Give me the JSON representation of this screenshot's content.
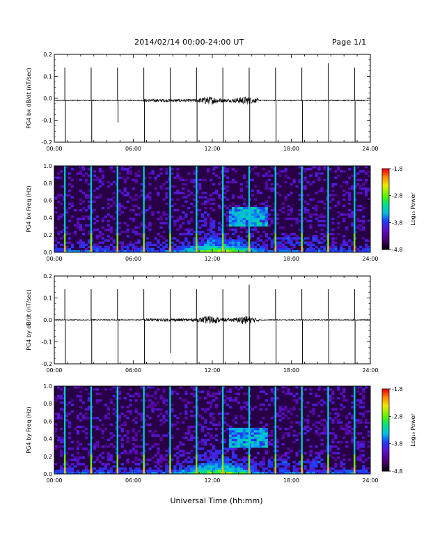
{
  "header": {
    "title": "2014/02/14  00:00-24:00 UT",
    "page": "Page 1/1"
  },
  "xlabel": "Universal Time (hh:mm)",
  "colorbar": {
    "label": "Log₁₀ Power",
    "ticks": [
      "-1.8",
      "-2.8",
      "-3.8",
      "-4.8"
    ],
    "range": [
      -4.8,
      -1.8
    ]
  },
  "chart_data": [
    {
      "type": "line",
      "ylabel": "PG4 bx dB/dt (nT/sec)",
      "xlim": [
        "00:00",
        "24:00"
      ],
      "ylim": [
        -0.2,
        0.2
      ],
      "xticks": [
        "00:00",
        "06:00",
        "12:00",
        "18:00",
        "24:00"
      ],
      "yticks": [
        "0.2",
        "0.1",
        "0.0",
        "-0.1",
        "-0.2"
      ],
      "baseline": -0.01,
      "spike_times_hours": [
        0.8,
        2.8,
        4.8,
        6.8,
        8.8,
        10.8,
        12.8,
        14.8,
        16.8,
        18.8,
        20.8,
        22.8
      ],
      "spike_max": [
        0.14,
        0.14,
        0.14,
        0.14,
        0.14,
        0.14,
        0.14,
        0.14,
        0.14,
        0.14,
        0.16,
        0.14
      ],
      "spike_min": [
        -0.2,
        -0.2,
        -0.11,
        -0.2,
        -0.2,
        -0.2,
        -0.2,
        -0.2,
        -0.2,
        -0.2,
        -0.2,
        -0.2
      ],
      "noise_period_hours": [
        6.8,
        15.5
      ],
      "noise_peak_hours": [
        11.8,
        14.5
      ]
    },
    {
      "type": "heatmap",
      "ylabel": "PG4 bx Freq (Hz)",
      "xlim": [
        "00:00",
        "24:00"
      ],
      "ylim": [
        0.0,
        1.0
      ],
      "xticks": [
        "00:00",
        "06:00",
        "12:00",
        "18:00",
        "24:00"
      ],
      "yticks": [
        "1.0",
        "0.8",
        "0.6",
        "0.4",
        "0.2",
        "0.0"
      ],
      "zlim": [
        -4.8,
        -1.8
      ],
      "spike_times_hours": [
        0.8,
        2.8,
        4.8,
        6.8,
        8.8,
        10.8,
        12.8,
        14.8,
        16.8,
        18.8,
        20.8,
        22.8
      ],
      "enhanced_band_hours": [
        13.2,
        16.2
      ],
      "enhanced_band_freq_hz": [
        0.35,
        0.5
      ]
    },
    {
      "type": "line",
      "ylabel": "PG4 by dB/dt (nT/sec)",
      "xlim": [
        "00:00",
        "24:00"
      ],
      "ylim": [
        -0.2,
        0.2
      ],
      "xticks": [
        "00:00",
        "06:00",
        "12:00",
        "18:00",
        "24:00"
      ],
      "yticks": [
        "0.2",
        "0.1",
        "0.0",
        "-0.1",
        "-0.2"
      ],
      "baseline": 0.0,
      "spike_times_hours": [
        0.8,
        2.8,
        4.8,
        6.8,
        8.8,
        10.8,
        12.8,
        14.8,
        16.8,
        18.8,
        20.8,
        22.8
      ],
      "spike_max": [
        0.14,
        0.14,
        0.14,
        0.14,
        0.14,
        0.14,
        0.14,
        0.16,
        0.14,
        0.14,
        0.14,
        0.14
      ],
      "spike_min": [
        -0.2,
        -0.2,
        -0.2,
        -0.2,
        -0.15,
        -0.2,
        -0.2,
        -0.2,
        -0.2,
        -0.2,
        -0.2,
        -0.2
      ],
      "noise_period_hours": [
        6.8,
        15.5
      ],
      "noise_peak_hours": [
        11.8,
        14.5
      ]
    },
    {
      "type": "heatmap",
      "ylabel": "PG4 by Freq (Hz)",
      "xlim": [
        "00:00",
        "24:00"
      ],
      "ylim": [
        0.0,
        1.0
      ],
      "xticks": [
        "00:00",
        "06:00",
        "12:00",
        "18:00",
        "24:00"
      ],
      "yticks": [
        "1.0",
        "0.8",
        "0.6",
        "0.4",
        "0.2",
        "0.0"
      ],
      "zlim": [
        -4.8,
        -1.8
      ],
      "spike_times_hours": [
        0.8,
        2.8,
        4.8,
        6.8,
        8.8,
        10.8,
        12.8,
        14.8,
        16.8,
        18.8,
        20.8,
        22.8
      ],
      "enhanced_band_hours": [
        13.2,
        16.2
      ],
      "enhanced_band_freq_hz": [
        0.35,
        0.5
      ]
    }
  ]
}
